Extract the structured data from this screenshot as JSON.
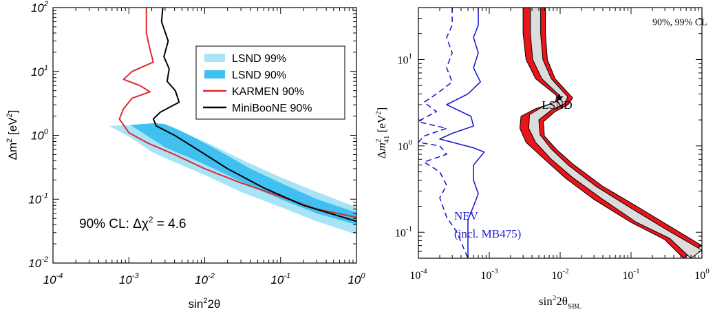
{
  "chart_data": [
    {
      "type": "line",
      "title": "",
      "xlabel": "sin²2θ",
      "ylabel": "Δm² [eV²]",
      "xscale": "log",
      "yscale": "log",
      "xlim": [
        0.0001,
        1
      ],
      "ylim": [
        0.01,
        100
      ],
      "xticks": [
        {
          "mant": "10",
          "exp": "-4"
        },
        {
          "mant": "10",
          "exp": "-3"
        },
        {
          "mant": "10",
          "exp": "-2"
        },
        {
          "mant": "10",
          "exp": "-1"
        },
        {
          "mant": "10",
          "exp": "0"
        }
      ],
      "yticks": [
        {
          "mant": "10",
          "exp": "-2"
        },
        {
          "mant": "10",
          "exp": "-1"
        },
        {
          "mant": "10",
          "exp": "0"
        },
        {
          "mant": "10",
          "exp": "1"
        },
        {
          "mant": "10",
          "exp": "2"
        }
      ],
      "annotation": "90% CL: Δχ² = 4.6",
      "legend_position": "top-right",
      "legend": [
        {
          "label": "LSND 99%",
          "color": "#a8e4f6",
          "kind": "fill"
        },
        {
          "label": "LSND 90%",
          "color": "#3fc0f0",
          "kind": "fill"
        },
        {
          "label": "KARMEN 90%",
          "color": "#e0282d",
          "kind": "line"
        },
        {
          "label": "MiniBooNE 90%",
          "color": "#000000",
          "kind": "line"
        }
      ],
      "series": [
        {
          "name": "LSND 99%",
          "kind": "band",
          "color": "#a8e4f6",
          "lower": [
            [
              0.00055,
              1.4
            ],
            [
              0.0011,
              0.9
            ],
            [
              0.002,
              0.55
            ],
            [
              0.004,
              0.38
            ],
            [
              0.01,
              0.24
            ],
            [
              0.03,
              0.13
            ],
            [
              0.1,
              0.075
            ],
            [
              0.3,
              0.045
            ],
            [
              1,
              0.028
            ]
          ],
          "upper": [
            [
              0.0024,
              1.5
            ],
            [
              0.0045,
              1.2
            ],
            [
              0.007,
              0.95
            ],
            [
              0.012,
              0.72
            ],
            [
              0.03,
              0.42
            ],
            [
              0.1,
              0.22
            ],
            [
              0.3,
              0.13
            ],
            [
              1,
              0.075
            ]
          ]
        },
        {
          "name": "LSND 90%",
          "kind": "band",
          "color": "#3fc0f0",
          "lower": [
            [
              0.00105,
              1.45
            ],
            [
              0.0017,
              1.0
            ],
            [
              0.003,
              0.65
            ],
            [
              0.006,
              0.46
            ],
            [
              0.015,
              0.28
            ],
            [
              0.04,
              0.16
            ],
            [
              0.1,
              0.1
            ],
            [
              0.3,
              0.06
            ],
            [
              1,
              0.04
            ]
          ],
          "upper": [
            [
              0.0022,
              1.55
            ],
            [
              0.003,
              1.5
            ],
            [
              0.0045,
              1.22
            ],
            [
              0.007,
              0.95
            ],
            [
              0.015,
              0.58
            ],
            [
              0.04,
              0.3
            ],
            [
              0.1,
              0.18
            ],
            [
              0.3,
              0.1
            ],
            [
              1,
              0.062
            ]
          ]
        },
        {
          "name": "KARMEN 90%",
          "kind": "line",
          "color": "#e0282d",
          "points": [
            [
              0.0017,
              100
            ],
            [
              0.0017,
              40
            ],
            [
              0.0019,
              22
            ],
            [
              0.0021,
              14
            ],
            [
              0.0011,
              10
            ],
            [
              0.00085,
              7.5
            ],
            [
              0.0014,
              6
            ],
            [
              0.0019,
              4.8
            ],
            [
              0.0011,
              3.8
            ],
            [
              0.00085,
              2.6
            ],
            [
              0.00075,
              1.8
            ],
            [
              0.001,
              1.1
            ],
            [
              0.0018,
              0.75
            ],
            [
              0.004,
              0.5
            ],
            [
              0.01,
              0.3
            ],
            [
              0.03,
              0.18
            ],
            [
              0.1,
              0.11
            ],
            [
              0.3,
              0.07
            ],
            [
              1,
              0.052
            ]
          ]
        },
        {
          "name": "MiniBooNE 90%",
          "kind": "line",
          "color": "#000000",
          "points": [
            [
              0.0028,
              100
            ],
            [
              0.0027,
              60
            ],
            [
              0.0033,
              30
            ],
            [
              0.0029,
              17
            ],
            [
              0.0034,
              11
            ],
            [
              0.0032,
              7
            ],
            [
              0.0041,
              5
            ],
            [
              0.0046,
              3.3
            ],
            [
              0.0026,
              2.3
            ],
            [
              0.0021,
              1.8
            ],
            [
              0.0023,
              1.4
            ],
            [
              0.004,
              1.0
            ],
            [
              0.008,
              0.6
            ],
            [
              0.02,
              0.3
            ],
            [
              0.06,
              0.15
            ],
            [
              0.2,
              0.08
            ],
            [
              1,
              0.045
            ]
          ]
        }
      ]
    },
    {
      "type": "line",
      "title": "",
      "xlabel": "sin²2θ_SBL",
      "ylabel": "Δm²_41 [eV²]",
      "xscale": "log",
      "yscale": "log",
      "xlim": [
        0.0001,
        1
      ],
      "ylim": [
        0.05,
        40
      ],
      "xticks": [
        {
          "mant": "10",
          "exp": "-4"
        },
        {
          "mant": "10",
          "exp": "-3"
        },
        {
          "mant": "10",
          "exp": "-2"
        },
        {
          "mant": "10",
          "exp": "-1"
        },
        {
          "mant": "10",
          "exp": "0"
        }
      ],
      "yticks": [
        {
          "mant": "10",
          "exp": "-1"
        },
        {
          "mant": "10",
          "exp": "0"
        },
        {
          "mant": "10",
          "exp": "1"
        }
      ],
      "annotations": [
        {
          "text": "90%, 99% CL",
          "x": 0.2,
          "y": 25
        },
        {
          "text": "LSND",
          "x": 0.0055,
          "y": 2.7
        },
        {
          "text": "NEV",
          "x": 0.00032,
          "y": 0.14
        },
        {
          "text": "(incl. MB475)",
          "x": 0.00032,
          "y": 0.087
        }
      ],
      "best_fit": {
        "x": 0.0098,
        "y": 3.6
      },
      "series": [
        {
          "name": "LSND 99%",
          "kind": "band",
          "color": "#e8151b",
          "lower": [
            [
              0.003,
              40
            ],
            [
              0.003,
              20
            ],
            [
              0.0033,
              10
            ],
            [
              0.0045,
              6
            ],
            [
              0.009,
              3.8
            ],
            [
              0.0085,
              3.2
            ],
            [
              0.0045,
              2.7
            ],
            [
              0.0028,
              2.2
            ],
            [
              0.0027,
              1.6
            ],
            [
              0.0033,
              1.1
            ],
            [
              0.006,
              0.7
            ],
            [
              0.012,
              0.42
            ],
            [
              0.03,
              0.24
            ],
            [
              0.1,
              0.13
            ],
            [
              0.3,
              0.082
            ],
            [
              0.55,
              0.05
            ]
          ],
          "upper": [
            [
              0.0062,
              40
            ],
            [
              0.0062,
              20
            ],
            [
              0.0066,
              10
            ],
            [
              0.0085,
              6
            ],
            [
              0.015,
              3.6
            ],
            [
              0.013,
              3.0
            ],
            [
              0.0085,
              2.5
            ],
            [
              0.0058,
              1.9
            ],
            [
              0.006,
              1.3
            ],
            [
              0.009,
              0.9
            ],
            [
              0.015,
              0.62
            ],
            [
              0.04,
              0.34
            ],
            [
              0.12,
              0.2
            ],
            [
              0.4,
              0.11
            ],
            [
              1,
              0.07
            ]
          ]
        },
        {
          "name": "LSND 90%",
          "kind": "band",
          "color": "#dcdcdc",
          "lower": [
            [
              0.0038,
              40
            ],
            [
              0.0038,
              20
            ],
            [
              0.0041,
              10
            ],
            [
              0.0055,
              6
            ],
            [
              0.0096,
              3.9
            ],
            [
              0.0092,
              3.3
            ],
            [
              0.0055,
              2.8
            ],
            [
              0.0037,
              2.3
            ],
            [
              0.0036,
              1.6
            ],
            [
              0.0045,
              1.1
            ],
            [
              0.0075,
              0.7
            ],
            [
              0.015,
              0.43
            ],
            [
              0.04,
              0.24
            ],
            [
              0.12,
              0.13
            ],
            [
              0.35,
              0.085
            ],
            [
              0.7,
              0.05
            ]
          ],
          "upper": [
            [
              0.0053,
              40
            ],
            [
              0.0053,
              20
            ],
            [
              0.0057,
              10
            ],
            [
              0.0075,
              6
            ],
            [
              0.0128,
              3.7
            ],
            [
              0.0116,
              3.1
            ],
            [
              0.0075,
              2.6
            ],
            [
              0.005,
              2.0
            ],
            [
              0.0052,
              1.35
            ],
            [
              0.0075,
              0.92
            ],
            [
              0.013,
              0.6
            ],
            [
              0.032,
              0.34
            ],
            [
              0.1,
              0.19
            ],
            [
              0.3,
              0.11
            ],
            [
              1,
              0.062
            ]
          ]
        },
        {
          "name": "NEV (incl. MB475)",
          "kind": "line",
          "color": "#1d1dd0",
          "dash": false,
          "points": [
            [
              0.0007,
              40
            ],
            [
              0.0007,
              25
            ],
            [
              0.0006,
              18
            ],
            [
              0.0007,
              12
            ],
            [
              0.0006,
              8
            ],
            [
              0.00075,
              5.5
            ],
            [
              0.0005,
              4
            ],
            [
              0.00025,
              3
            ],
            [
              0.00055,
              2.2
            ],
            [
              0.0006,
              1.7
            ],
            [
              0.0003,
              1.4
            ],
            [
              0.0002,
              1.2
            ],
            [
              0.0006,
              0.95
            ],
            [
              0.00085,
              0.85
            ],
            [
              0.0006,
              0.6
            ],
            [
              0.0006,
              0.4
            ],
            [
              0.0007,
              0.28
            ],
            [
              0.0006,
              0.2
            ],
            [
              0.0005,
              0.14
            ],
            [
              0.0005,
              0.1
            ],
            [
              0.0005,
              0.05
            ]
          ]
        },
        {
          "name": "dashed",
          "kind": "line",
          "color": "#1d1dd0",
          "dash": true,
          "points": [
            [
              0.0003,
              40
            ],
            [
              0.0003,
              25
            ],
            [
              0.00025,
              18
            ],
            [
              0.0003,
              12
            ],
            [
              0.00025,
              8
            ],
            [
              0.0003,
              5.5
            ],
            [
              0.00018,
              4
            ],
            [
              0.00012,
              3.2
            ],
            [
              0.00018,
              2.5
            ],
            [
              0.00012,
              2.1
            ],
            [
              0.0001,
              1.9
            ],
            [
              0.00025,
              1.6
            ],
            [
              0.00012,
              1.3
            ],
            [
              0.0001,
              1.1
            ],
            [
              0.0002,
              1.0
            ],
            [
              0.00025,
              0.8
            ],
            [
              0.00012,
              0.65
            ],
            [
              0.0002,
              0.5
            ],
            [
              0.00025,
              0.35
            ],
            [
              0.0002,
              0.25
            ],
            [
              0.00025,
              0.15
            ],
            [
              0.00035,
              0.1
            ],
            [
              0.0005,
              0.05
            ]
          ]
        }
      ]
    }
  ]
}
